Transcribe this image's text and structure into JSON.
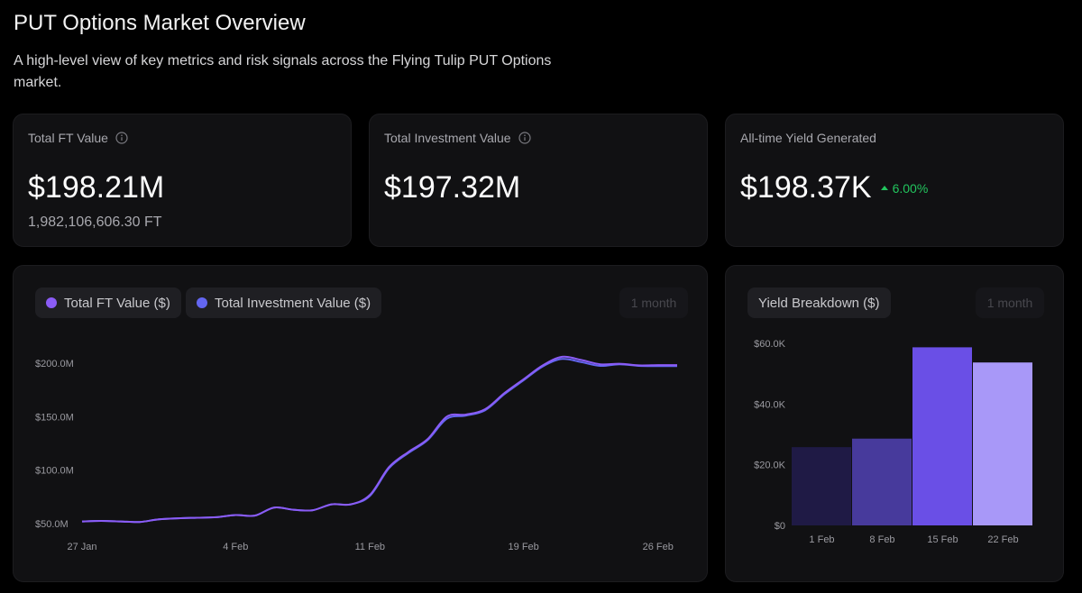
{
  "page": {
    "title": "PUT Options Market Overview",
    "subtitle": "A high-level view of key metrics and risk signals across the Flying Tulip PUT Options market."
  },
  "stats": {
    "total_ft": {
      "label": "Total FT Value",
      "value": "$198.21M",
      "sub": "1,982,106,606.30 FT",
      "icon": "info-icon"
    },
    "total_investment": {
      "label": "Total Investment Value",
      "value": "$197.32M",
      "icon": "info-icon"
    },
    "yield": {
      "label": "All-time Yield Generated",
      "value": "$198.37K",
      "change": "6.00%",
      "change_icon": "triangle-up-icon"
    }
  },
  "colors": {
    "ft_series": "#8b5cf6",
    "investment_series": "#6366f1",
    "positive": "#22c55e",
    "bars": [
      "#1f1a45",
      "#473a9c",
      "#6a4fe6",
      "#a898f8"
    ]
  },
  "line_chart": {
    "legend": [
      {
        "label": "Total FT Value ($)",
        "color": "#8b5cf6"
      },
      {
        "label": "Total Investment Value ($)",
        "color": "#6366f1"
      }
    ],
    "range_label": "1 month"
  },
  "bar_chart": {
    "title": "Yield Breakdown ($)",
    "range_label": "1 month"
  },
  "chart_data": [
    {
      "type": "line",
      "x": [
        "27 Jan",
        "28 Jan",
        "29 Jan",
        "30 Jan",
        "31 Jan",
        "1 Feb",
        "2 Feb",
        "3 Feb",
        "4 Feb",
        "5 Feb",
        "6 Feb",
        "7 Feb",
        "8 Feb",
        "9 Feb",
        "10 Feb",
        "11 Feb",
        "12 Feb",
        "13 Feb",
        "14 Feb",
        "15 Feb",
        "16 Feb",
        "17 Feb",
        "18 Feb",
        "19 Feb",
        "20 Feb",
        "21 Feb",
        "22 Feb",
        "23 Feb",
        "24 Feb",
        "25 Feb",
        "26 Feb",
        "27 Feb"
      ],
      "x_ticks": [
        "27 Jan",
        "4 Feb",
        "11 Feb",
        "19 Feb",
        "26 Feb"
      ],
      "y_ticks": [
        "$50.0M",
        "$100.0M",
        "$150.0M",
        "$200.0M"
      ],
      "y_tick_values": [
        50,
        100,
        150,
        200
      ],
      "ylim": [
        50,
        200
      ],
      "y_unit": "M",
      "series": [
        {
          "name": "Total FT Value ($)",
          "values": [
            52,
            52.5,
            52,
            51.5,
            54,
            55,
            55.5,
            56,
            58,
            57.5,
            65,
            63,
            62.5,
            68,
            68,
            77,
            103,
            117,
            129,
            150,
            152,
            157,
            172,
            185,
            198,
            206,
            203,
            199,
            199.5,
            198,
            198.2,
            198.21
          ]
        },
        {
          "name": "Total Investment Value ($)",
          "values": [
            52,
            52.5,
            52,
            51.5,
            54,
            55,
            55.5,
            56,
            58,
            57.5,
            65,
            63,
            62.5,
            68,
            68,
            76,
            102,
            116,
            128,
            148,
            151,
            156,
            171,
            184,
            197,
            204,
            201,
            197.5,
            199,
            197.5,
            197.3,
            197.32
          ]
        }
      ],
      "grid": false,
      "legend_position": "top-left"
    },
    {
      "type": "bar",
      "categories": [
        "1 Feb",
        "8 Feb",
        "15 Feb",
        "22 Feb"
      ],
      "values": [
        25800,
        28600,
        58700,
        53700
      ],
      "y_ticks": [
        "$0",
        "$20.0K",
        "$40.0K",
        "$60.0K"
      ],
      "y_tick_values": [
        0,
        20000,
        40000,
        60000
      ],
      "ylim": [
        0,
        60000
      ],
      "grid": false
    }
  ]
}
